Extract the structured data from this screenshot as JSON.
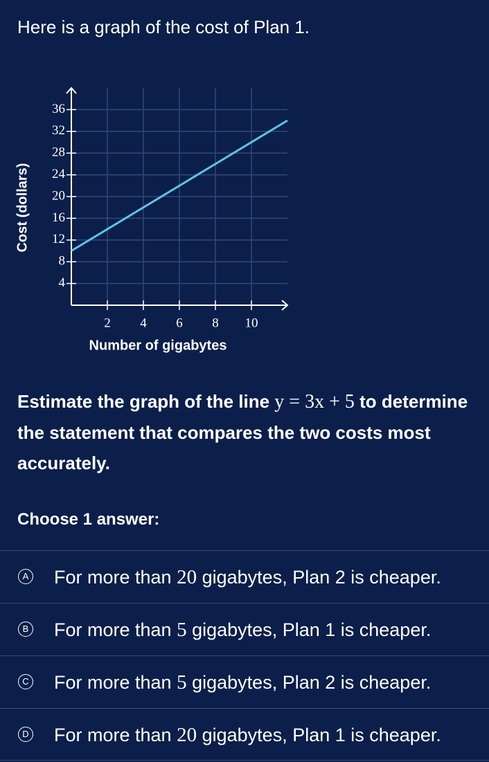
{
  "header": {
    "text": "Here is a graph of the cost of Plan 1."
  },
  "chart_data": {
    "type": "line",
    "x_label": "Number of gigabytes",
    "y_label": "Cost (dollars)",
    "x": [
      0,
      12
    ],
    "series": [
      {
        "name": "Plan 1",
        "color": "#5ec4e8",
        "values": [
          10,
          34
        ]
      }
    ],
    "xlim": [
      0,
      12
    ],
    "xticks": [
      2,
      4,
      6,
      8,
      10
    ],
    "ylim": [
      0,
      40
    ],
    "yticks": [
      4,
      8,
      12,
      16,
      20,
      24,
      28,
      32,
      36
    ],
    "grid": true
  },
  "question": {
    "before": "Estimate the graph of the line",
    "equation": "y = 3x + 5",
    "after": "to determine the statement that compares the two costs most accurately."
  },
  "prompt": "Choose 1 answer:",
  "choices": [
    {
      "letter": "A",
      "before": "For more than",
      "number": "20",
      "after": "gigabytes, Plan 2 is cheaper."
    },
    {
      "letter": "B",
      "before": "For more than",
      "number": "5",
      "after": "gigabytes, Plan 1 is cheaper."
    },
    {
      "letter": "C",
      "before": "For more than",
      "number": "5",
      "after": "gigabytes, Plan 2 is cheaper."
    },
    {
      "letter": "D",
      "before": "For more than",
      "number": "20",
      "after": "gigabytes, Plan 1 is cheaper."
    }
  ]
}
